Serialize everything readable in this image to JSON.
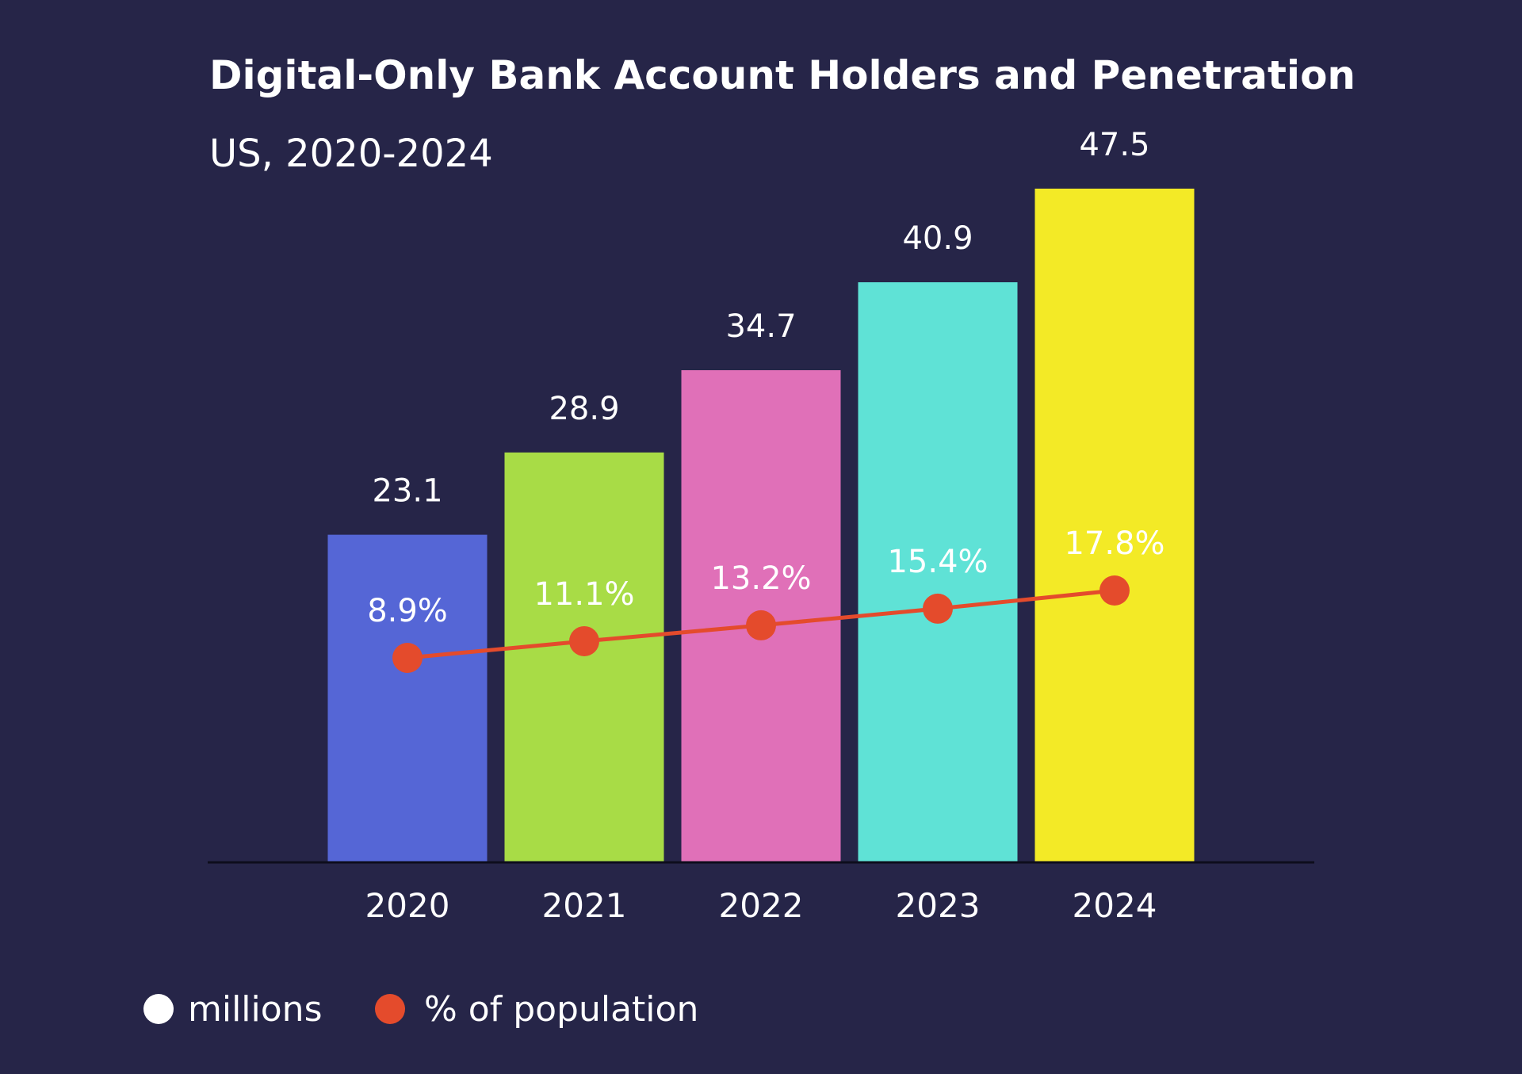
{
  "chart_data": {
    "type": "bar",
    "title": "Digital-Only Bank Account Holders and Penetration",
    "subtitle": "US, 2020-2024",
    "categories": [
      "2020",
      "2021",
      "2022",
      "2023",
      "2024"
    ],
    "series": [
      {
        "name": "millions",
        "kind": "bar",
        "values": [
          23.1,
          28.9,
          34.7,
          40.9,
          47.5
        ],
        "value_labels": [
          "23.1",
          "28.9",
          "34.7",
          "40.9",
          "47.5"
        ],
        "colors": [
          "#5566d6",
          "#a8dc46",
          "#e070b8",
          "#5fe2d6",
          "#f3ea26"
        ]
      },
      {
        "name": "% of population",
        "kind": "line",
        "values": [
          8.9,
          11.1,
          13.2,
          15.4,
          17.8
        ],
        "value_labels": [
          "8.9%",
          "11.1%",
          "13.2%",
          "15.4%",
          "17.8%"
        ],
        "color": "#e44b2c"
      }
    ],
    "ylim": [
      0,
      47.5
    ],
    "grid": false,
    "legend_position": "bottom-left",
    "legend": [
      {
        "label": "millions",
        "color": "#ffffff"
      },
      {
        "label": "% of population",
        "color": "#e44b2c"
      }
    ],
    "background": "#262548"
  }
}
